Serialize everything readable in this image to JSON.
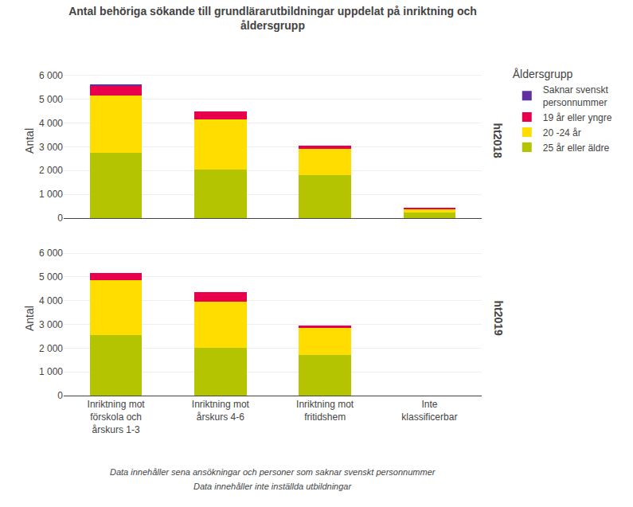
{
  "chart_data": [
    {
      "type": "bar",
      "title": "Antal behöriga sökande till grundlärarutbildningar uppdelat på inriktning och\nåldersgrupp",
      "subtitle": "ht2018",
      "categories": [
        "Inriktning mot\nförskola och\nårskurs 1-3",
        "Inriktning mot\nårskurs 4-6",
        "Inriktning mot\nfritidshem",
        "Inte\nklassificerbar"
      ],
      "series": [
        {
          "name": "25 år eller äldre",
          "color": "#b5c400",
          "values": [
            2750,
            2050,
            1800,
            220
          ]
        },
        {
          "name": "20 -24 år",
          "color": "#ffdd00",
          "values": [
            2400,
            2100,
            1100,
            150
          ]
        },
        {
          "name": "19 år eller yngre",
          "color": "#e8004c",
          "values": [
            420,
            350,
            150,
            30
          ]
        },
        {
          "name": "Saknar svenskt\npersonnummer",
          "color": "#6030a0",
          "values": [
            30,
            0,
            0,
            0
          ]
        }
      ],
      "stacked": true,
      "ylabel": "Antal",
      "ylim": [
        0,
        6500
      ],
      "yticks": [
        0,
        {
          "value": 1000,
          "label": "1 000"
        },
        {
          "value": 2000,
          "label": "2 000"
        },
        {
          "value": 3000,
          "label": "3 000"
        },
        {
          "value": 4000,
          "label": "4 000"
        },
        {
          "value": 5000,
          "label": "5 000"
        },
        {
          "value": 6000,
          "label": "6 000"
        }
      ],
      "grid": true,
      "tick_labels": "y",
      "legend": "right",
      "legend_title": "Åldersgrupp"
    },
    {
      "type": "bar",
      "subtitle": "ht2019",
      "categories": [
        "Inriktning mot\nförskola och\nårskurs 1-3",
        "Inriktning mot\nårskurs 4-6",
        "Inriktning mot\nfritidshem",
        "Inte\nklassificerbar"
      ],
      "series": [
        {
          "name": "25 år eller äldre",
          "color": "#b5c400",
          "values": [
            2550,
            2000,
            1700,
            0
          ]
        },
        {
          "name": "20 -24 år",
          "color": "#ffdd00",
          "values": [
            2300,
            1950,
            1150,
            0
          ]
        },
        {
          "name": "19 år eller yngre",
          "color": "#e8004c",
          "values": [
            300,
            400,
            100,
            0
          ]
        },
        {
          "name": "Saknar svenskt\npersonnummer",
          "color": "#6030a0",
          "values": [
            0,
            0,
            0,
            0
          ]
        }
      ],
      "stacked": true,
      "ylabel": "Antal",
      "ylim": [
        0,
        6500
      ],
      "yticks": [
        0,
        {
          "value": 1000,
          "label": "1 000"
        },
        {
          "value": 2000,
          "label": "2 000"
        },
        {
          "value": 3000,
          "label": "3 000"
        },
        {
          "value": 4000,
          "label": "4 000"
        },
        {
          "value": 5000,
          "label": "5 000"
        },
        {
          "value": 6000,
          "label": "6 000"
        }
      ],
      "grid": true,
      "annotations": [
        "Data innehåller sena ansökningar och personer som saknar svenskt personnummer",
        "Data innehåller inte inställda utbildningar"
      ]
    }
  ]
}
